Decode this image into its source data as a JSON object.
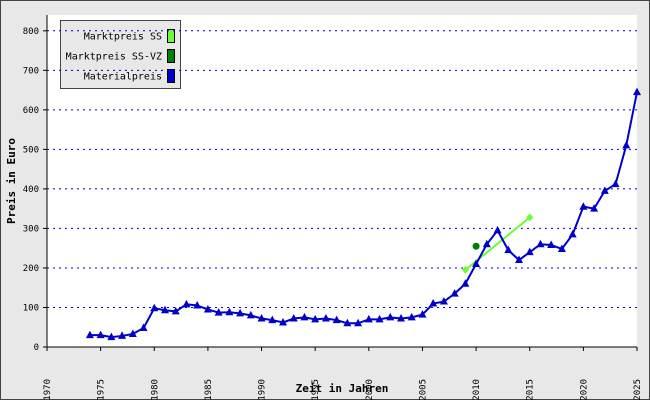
{
  "chart_data": {
    "type": "line",
    "xlabel": "Zeit in Jahren",
    "ylabel": "Preis in Euro",
    "xlim": [
      1970,
      2025
    ],
    "xticks": [
      1970,
      1975,
      1980,
      1985,
      1990,
      1995,
      2000,
      2005,
      2010,
      2015,
      2020,
      2025
    ],
    "ylim": [
      0,
      840
    ],
    "yticks": [
      0,
      100,
      200,
      300,
      400,
      500,
      600,
      700,
      800
    ],
    "grid": true,
    "legend": "upper left",
    "series": [
      {
        "name": "Marktpreis SS",
        "color": "#66ff33",
        "marker": "diamond",
        "line": true,
        "x": [
          2009,
          2015
        ],
        "values": [
          195,
          328
        ]
      },
      {
        "name": "Marktpreis SS-VZ",
        "color": "#008000",
        "marker": "circle",
        "line": false,
        "x": [
          2010
        ],
        "values": [
          255
        ]
      },
      {
        "name": "Materialpreis",
        "color": "#0000cc",
        "marker": "triangle",
        "line": true,
        "x": [
          1974,
          1975,
          1976,
          1977,
          1978,
          1979,
          1980,
          1981,
          1982,
          1983,
          1984,
          1985,
          1986,
          1987,
          1988,
          1989,
          1990,
          1991,
          1992,
          1993,
          1994,
          1995,
          1996,
          1997,
          1998,
          1999,
          2000,
          2001,
          2002,
          2003,
          2004,
          2005,
          2006,
          2007,
          2008,
          2009,
          2010,
          2011,
          2012,
          2013,
          2014,
          2015,
          2016,
          2017,
          2018,
          2019,
          2020,
          2021,
          2022,
          2023,
          2024,
          2025
        ],
        "values": [
          30,
          30,
          25,
          28,
          33,
          48,
          98,
          93,
          90,
          108,
          105,
          95,
          87,
          88,
          85,
          80,
          72,
          68,
          62,
          72,
          75,
          70,
          72,
          68,
          60,
          60,
          70,
          70,
          75,
          72,
          75,
          82,
          110,
          115,
          135,
          160,
          210,
          260,
          295,
          245,
          220,
          240,
          260,
          258,
          248,
          285,
          355,
          350,
          395,
          412,
          510,
          645
        ]
      }
    ]
  }
}
